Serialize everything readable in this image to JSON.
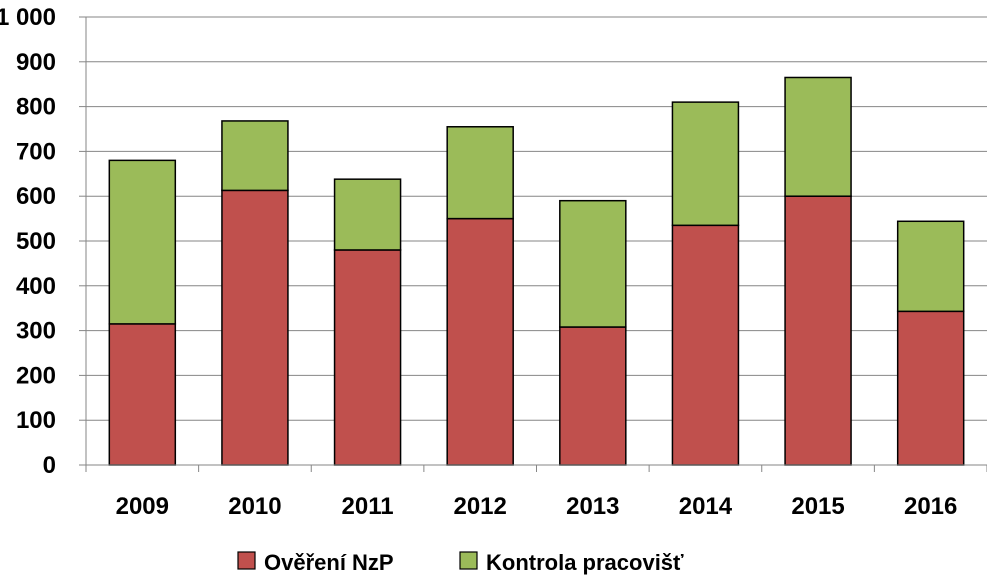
{
  "chart_data": {
    "type": "bar",
    "stacked": true,
    "categories": [
      "2009",
      "2010",
      "2011",
      "2012",
      "2013",
      "2014",
      "2015",
      "2016"
    ],
    "series": [
      {
        "name": "Ověření NzP",
        "color": "#c0504d",
        "values": [
          315,
          613,
          480,
          550,
          308,
          535,
          600,
          343
        ]
      },
      {
        "name": "Kontrola pracovišť",
        "color": "#9bbb59",
        "values": [
          365,
          155,
          158,
          205,
          282,
          275,
          265,
          201
        ]
      }
    ],
    "y_ticks": [
      "0",
      "100",
      "200",
      "300",
      "400",
      "500",
      "600",
      "700",
      "800",
      "900",
      "1 000"
    ],
    "ylim": [
      0,
      1000
    ],
    "grid": true,
    "legend_position": "bottom",
    "title": "",
    "xlabel": "",
    "ylabel": ""
  }
}
